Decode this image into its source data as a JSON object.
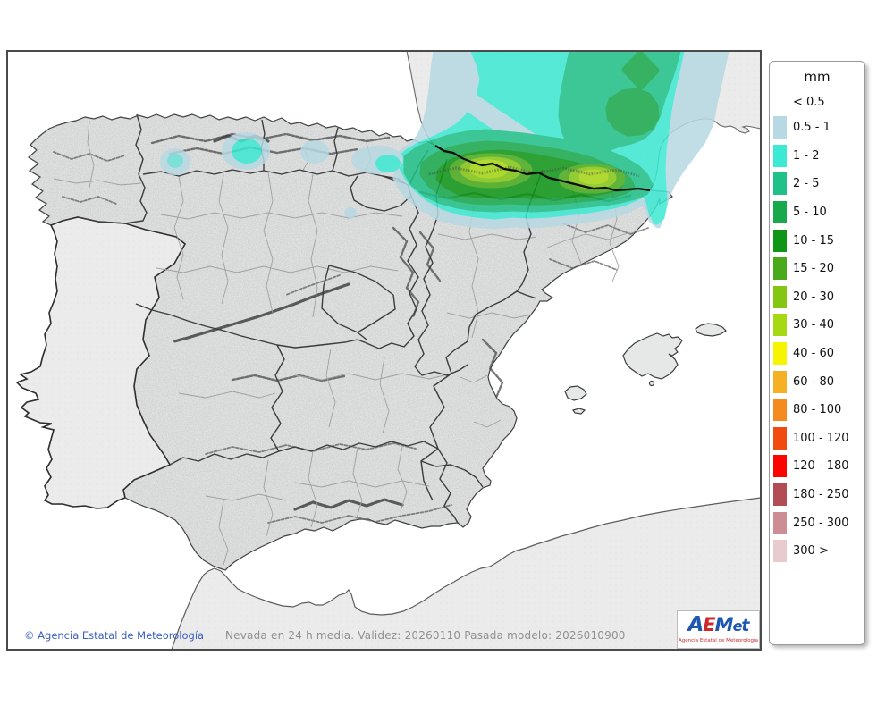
{
  "legend": {
    "title": "mm",
    "no_swatch_label": "< 0.5",
    "entries": [
      {
        "label": "0.5 - 1",
        "color": "#b7d9e3"
      },
      {
        "label": "1 - 2",
        "color": "#3ce9d3"
      },
      {
        "label": "2 - 5",
        "color": "#1fc189"
      },
      {
        "label": "5 - 10",
        "color": "#17a94b"
      },
      {
        "label": "10 - 15",
        "color": "#0f9616"
      },
      {
        "label": "15 - 20",
        "color": "#49ab1c"
      },
      {
        "label": "20 - 30",
        "color": "#84c713"
      },
      {
        "label": "30 - 40",
        "color": "#a6d813"
      },
      {
        "label": "40 - 60",
        "color": "#f7f400"
      },
      {
        "label": "60 - 80",
        "color": "#f5b024"
      },
      {
        "label": "80 - 100",
        "color": "#f58b1f"
      },
      {
        "label": "100 - 120",
        "color": "#f24b0f"
      },
      {
        "label": "120 - 180",
        "color": "#fb0500"
      },
      {
        "label": "180 - 250",
        "color": "#b24c55"
      },
      {
        "label": "250 - 300",
        "color": "#cd8d95"
      },
      {
        "label": "300 >",
        "color": "#e8cbcd"
      }
    ]
  },
  "footer": {
    "copyright": "© Agencia Estatal de Meteorología",
    "model_info": "Nevada en 24 h media. Validez: 20260110 Pasada modelo: 2026010900"
  },
  "logo": {
    "letters": [
      {
        "ch": "A",
        "color": "#1f56b0"
      },
      {
        "ch": "E",
        "color": "#cc2a2a"
      },
      {
        "ch": "M",
        "color": "#1f56b0"
      },
      {
        "ch": "e",
        "color": "#1f56b0"
      },
      {
        "ch": "t",
        "color": "#1f56b0"
      }
    ],
    "subtitle": "Agencia Estatal de Meteorología"
  },
  "map_colors": {
    "sea": "#ffffff",
    "spain_land": "#e3e4e4",
    "flat_land": "#ebebeb",
    "frame": "#4a4a4a",
    "community_border": "#3c3c3c",
    "province_border": "#a0a0a0"
  }
}
